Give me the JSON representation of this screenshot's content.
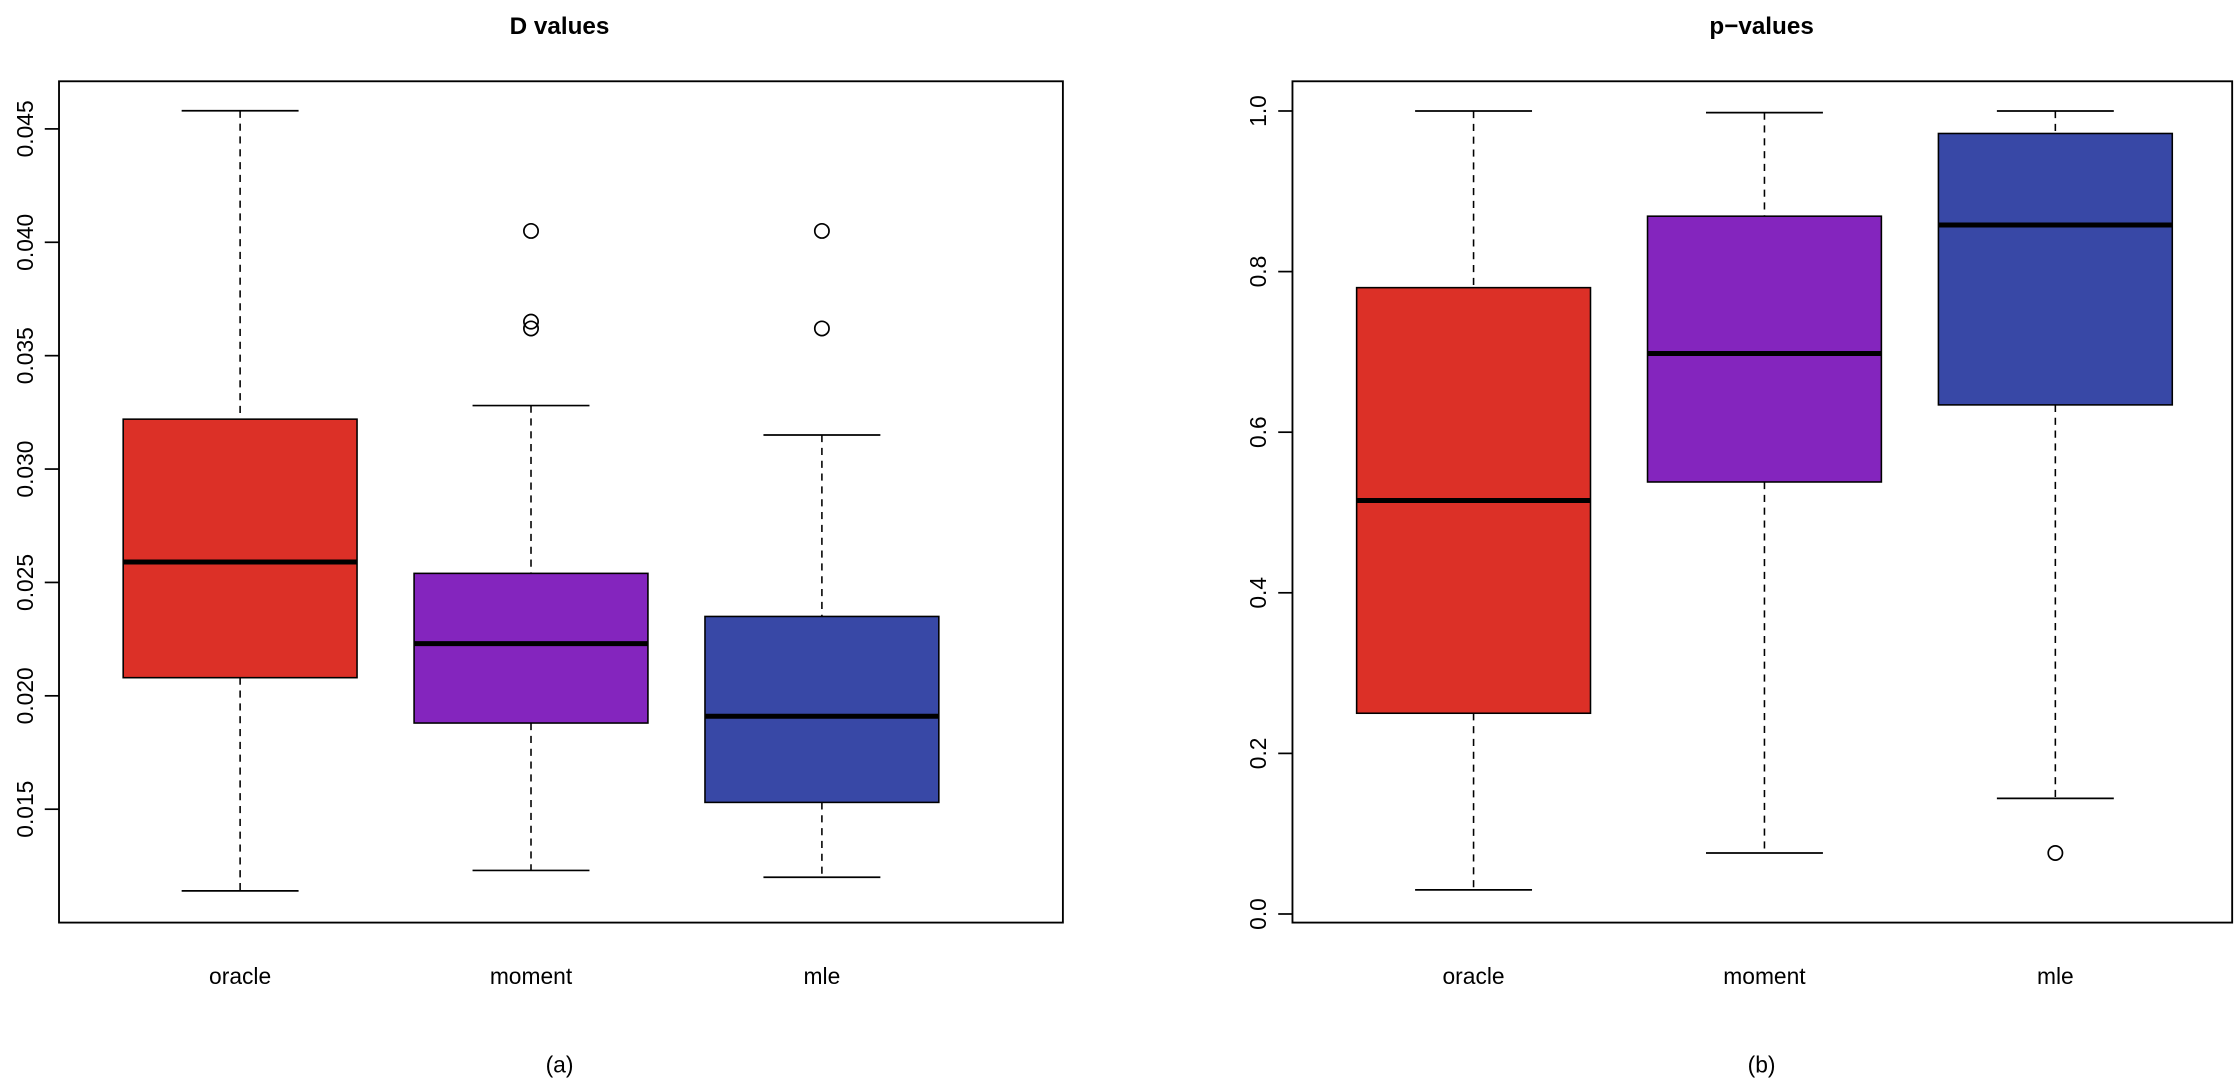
{
  "chart_data": [
    {
      "type": "boxplot",
      "title": "D values",
      "caption": "(a)",
      "xlabel": "",
      "ylabel": "",
      "ylim": [
        0.01,
        0.0471
      ],
      "yticks": [
        0.015,
        0.02,
        0.025,
        0.03,
        0.035,
        0.04,
        0.045
      ],
      "ytick_labels": [
        "0.015",
        "0.020",
        "0.025",
        "0.030",
        "0.035",
        "0.040",
        "0.045"
      ],
      "categories": [
        "oracle",
        "moment",
        "mle"
      ],
      "colors": [
        "#DC3027",
        "#8425BE",
        "#3848A6"
      ],
      "boxes": [
        {
          "name": "oracle",
          "lower_whisker": 0.0114,
          "q1": 0.0208,
          "median": 0.0259,
          "q3": 0.0322,
          "upper_whisker": 0.0458,
          "outliers": []
        },
        {
          "name": "moment",
          "lower_whisker": 0.0123,
          "q1": 0.0188,
          "median": 0.0223,
          "q3": 0.0254,
          "upper_whisker": 0.0328,
          "outliers": [
            0.0405,
            0.0365,
            0.0362
          ]
        },
        {
          "name": "mle",
          "lower_whisker": 0.012,
          "q1": 0.0153,
          "median": 0.0191,
          "q3": 0.0235,
          "upper_whisker": 0.0315,
          "outliers": [
            0.0405,
            0.0362
          ]
        }
      ]
    },
    {
      "type": "boxplot",
      "title": "p−values",
      "caption": "(b)",
      "xlabel": "",
      "ylabel": "",
      "ylim": [
        -0.0107,
        1.037
      ],
      "yticks": [
        0.0,
        0.2,
        0.4,
        0.6,
        0.8,
        1.0
      ],
      "ytick_labels": [
        "0.0",
        "0.2",
        "0.4",
        "0.6",
        "0.8",
        "1.0"
      ],
      "categories": [
        "oracle",
        "moment",
        "mle"
      ],
      "colors": [
        "#DC3027",
        "#8425BE",
        "#3848A6"
      ],
      "boxes": [
        {
          "name": "oracle",
          "lower_whisker": 0.03,
          "q1": 0.25,
          "median": 0.515,
          "q3": 0.78,
          "upper_whisker": 1.0,
          "outliers": []
        },
        {
          "name": "moment",
          "lower_whisker": 0.076,
          "q1": 0.538,
          "median": 0.698,
          "q3": 0.869,
          "upper_whisker": 0.998,
          "outliers": []
        },
        {
          "name": "mle",
          "lower_whisker": 0.144,
          "q1": 0.634,
          "median": 0.858,
          "q3": 0.972,
          "upper_whisker": 1.0,
          "outliers": [
            0.076
          ]
        }
      ]
    }
  ]
}
